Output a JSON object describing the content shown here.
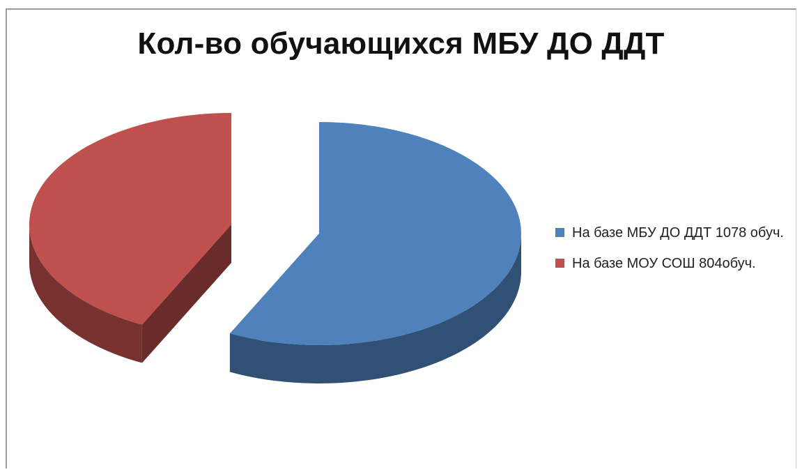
{
  "chart_data": {
    "type": "pie",
    "title": "Кол-во обучающихся МБУ ДО ДДТ",
    "three_d": true,
    "exploded": true,
    "legend_position": "right",
    "slices": [
      {
        "label": "На базе МБУ ДО ДДТ 1078 обуч.",
        "value": 1078,
        "color": "#4F81BD"
      },
      {
        "label": "На базе МОУ СОШ 804обуч.",
        "value": 804,
        "color": "#C0504D"
      }
    ]
  }
}
